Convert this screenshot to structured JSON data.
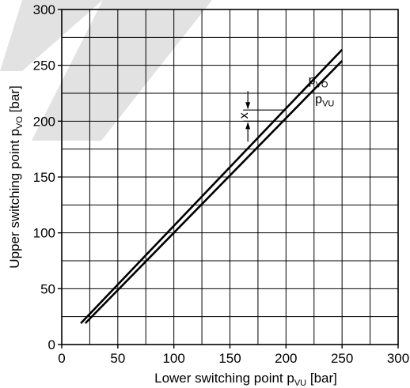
{
  "chart_data": {
    "type": "line",
    "xlabel": "Lower switching point p",
    "xlabel_sub": "VU",
    "xlabel_unit": " [bar]",
    "ylabel": "Upper switching point p",
    "ylabel_sub": "VO",
    "ylabel_unit": " [bar]",
    "xlim": [
      0,
      300
    ],
    "ylim": [
      0,
      300
    ],
    "xticks": [
      0,
      50,
      100,
      150,
      200,
      250,
      300
    ],
    "yticks": [
      0,
      50,
      100,
      150,
      200,
      250,
      300
    ],
    "xtick_labels": [
      "0",
      "50",
      "100",
      "150",
      "200",
      "250",
      "300"
    ],
    "ytick_labels": [
      "0",
      "50",
      "100",
      "150",
      "200",
      "250",
      "300"
    ],
    "grid": true,
    "minor_grid_step": 25,
    "series": [
      {
        "name": "p",
        "name_sub": "VO",
        "x": [
          17,
          250
        ],
        "y": [
          19,
          264
        ]
      },
      {
        "name": "p",
        "name_sub": "VU",
        "x": [
          21,
          250
        ],
        "y": [
          19,
          254
        ]
      }
    ],
    "annotation": {
      "label": "x",
      "x": 166,
      "y_top": 210,
      "y_bottom": 200
    },
    "watermark_color": "#e2e2e2",
    "line_color": "#000000"
  }
}
